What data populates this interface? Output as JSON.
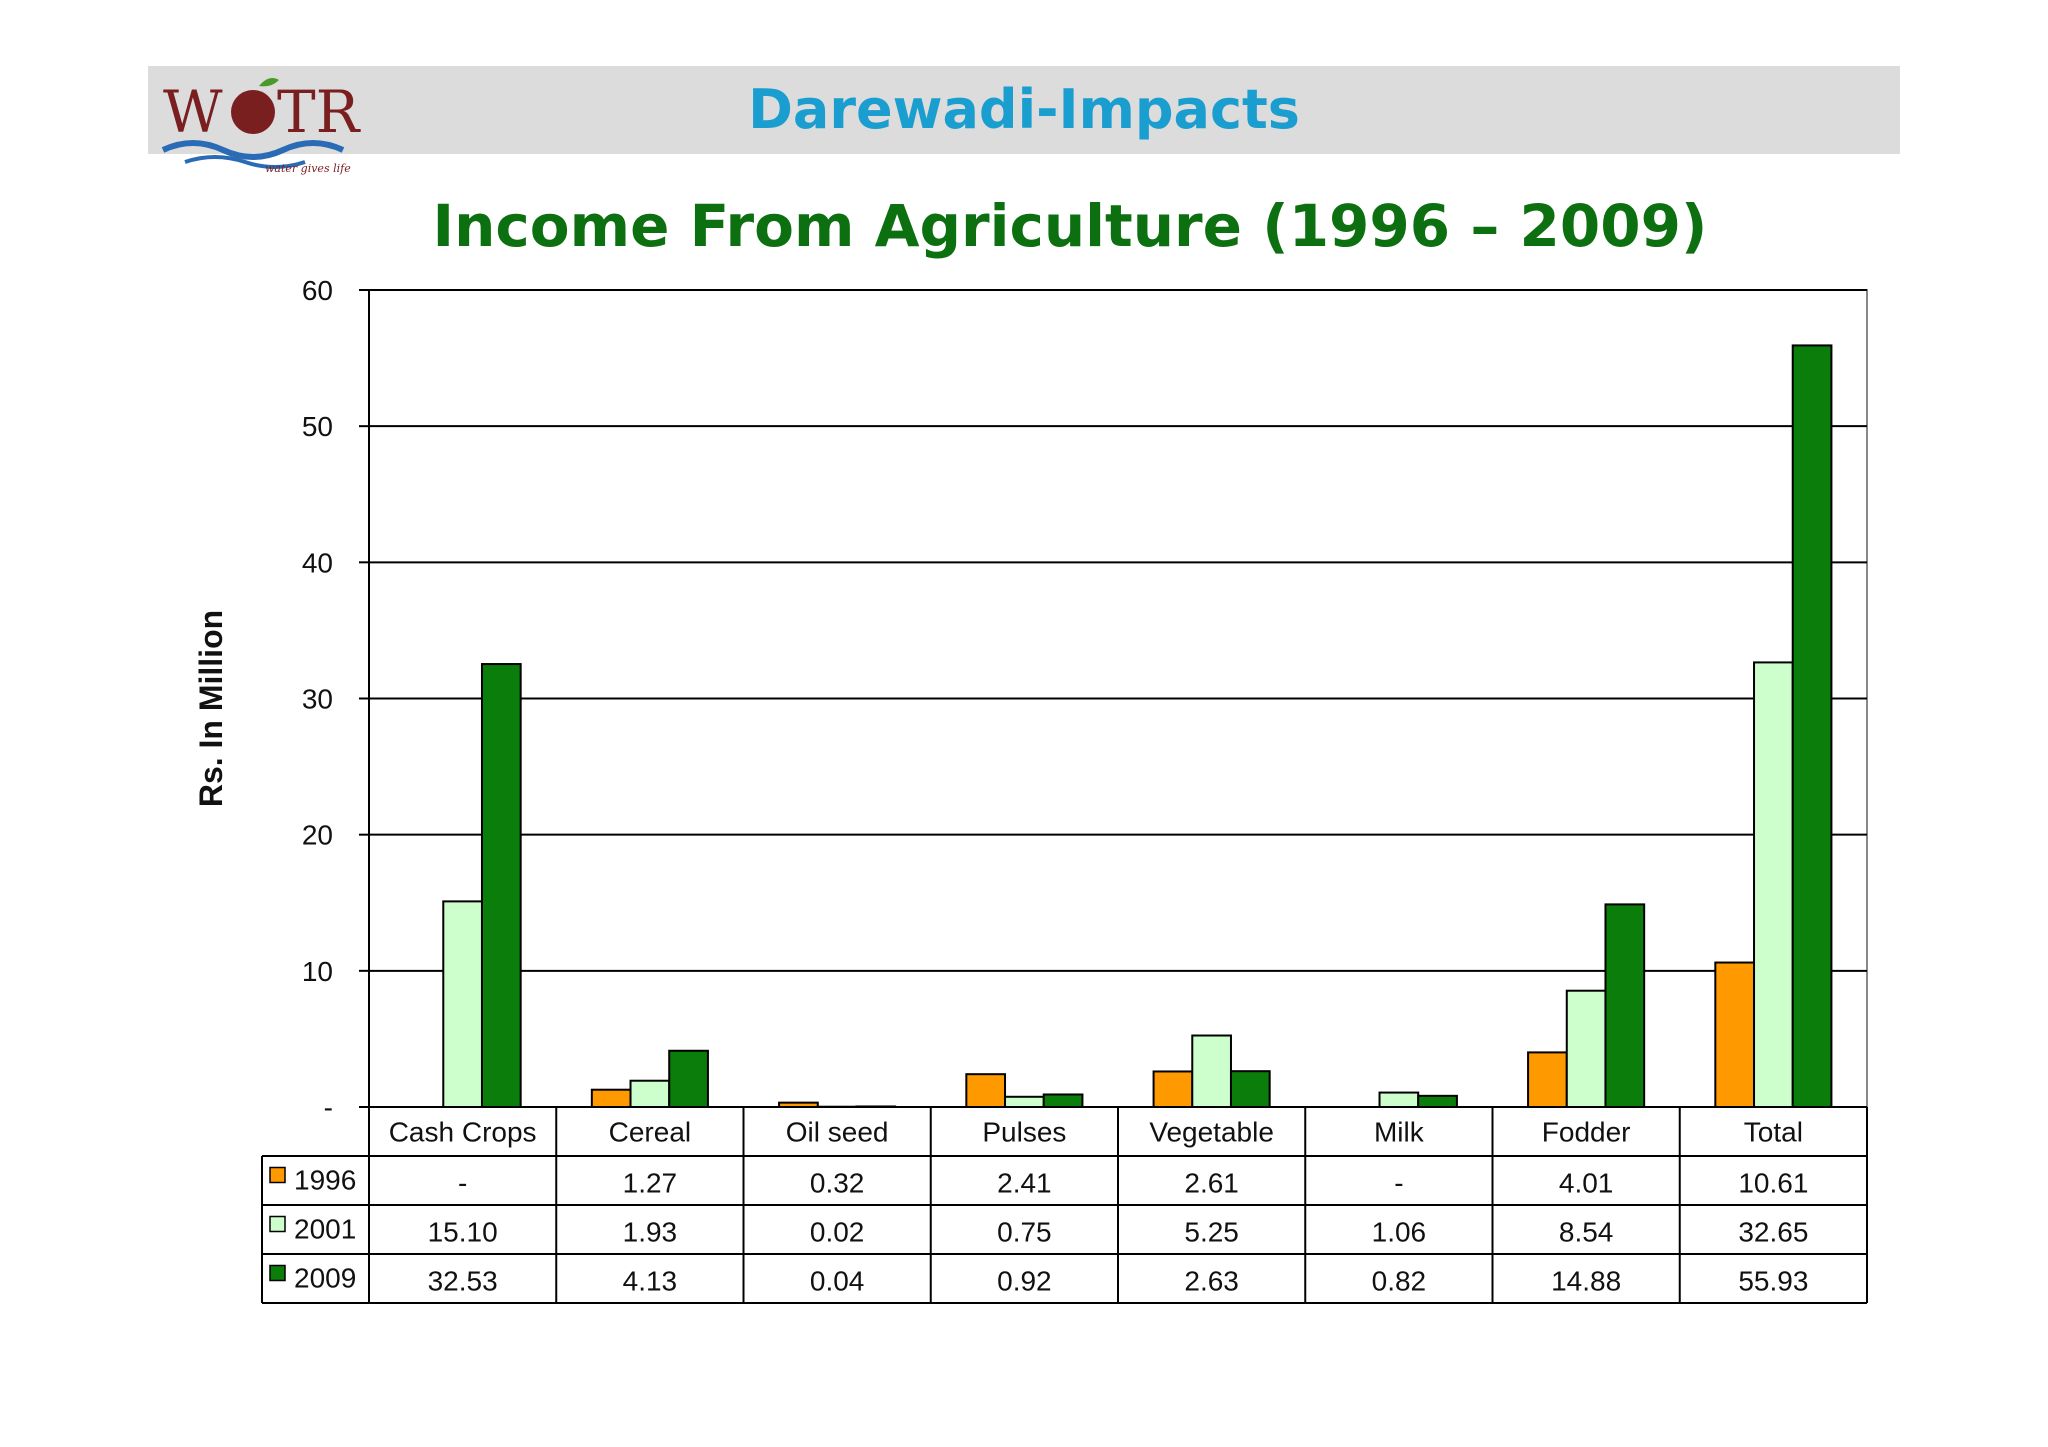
{
  "header": {
    "logo_text": "WOTR",
    "logo_tagline": "water gives life",
    "slide_title": "Darewadi-Impacts"
  },
  "colors": {
    "title": "#1a9ed0",
    "chart_title": "#0d7010",
    "series_1996": "#ff9900",
    "series_2001": "#ccffcc",
    "series_2009": "#0b7d0b"
  },
  "chart_data": {
    "type": "bar",
    "title": "Income From Agriculture (1996 – 2009)",
    "xlabel": "",
    "ylabel": "Rs. In Million",
    "ylim": [
      0,
      60
    ],
    "yticks": [
      0,
      10,
      20,
      30,
      40,
      50,
      60
    ],
    "ytick_labels": [
      "-",
      "10",
      "20",
      "30",
      "40",
      "50",
      "60"
    ],
    "grid": true,
    "legend": "data-table",
    "categories": [
      "Cash Crops",
      "Cereal",
      "Oil seed",
      "Pulses",
      "Vegetable",
      "Milk",
      "Fodder",
      "Total"
    ],
    "series": [
      {
        "name": "1996",
        "values": [
          0,
          1.27,
          0.32,
          2.41,
          2.61,
          0,
          4.01,
          10.61
        ],
        "labels": [
          "-",
          "1.27",
          "0.32",
          "2.41",
          "2.61",
          "-",
          "4.01",
          "10.61"
        ]
      },
      {
        "name": "2001",
        "values": [
          15.1,
          1.93,
          0.02,
          0.75,
          5.25,
          1.06,
          8.54,
          32.65
        ],
        "labels": [
          "15.10",
          "1.93",
          "0.02",
          "0.75",
          "5.25",
          "1.06",
          "8.54",
          "32.65"
        ]
      },
      {
        "name": "2009",
        "values": [
          32.53,
          4.13,
          0.04,
          0.92,
          2.63,
          0.82,
          14.88,
          55.93
        ],
        "labels": [
          "32.53",
          "4.13",
          "0.04",
          "0.92",
          "2.63",
          "0.82",
          "14.88",
          "55.93"
        ]
      }
    ]
  }
}
